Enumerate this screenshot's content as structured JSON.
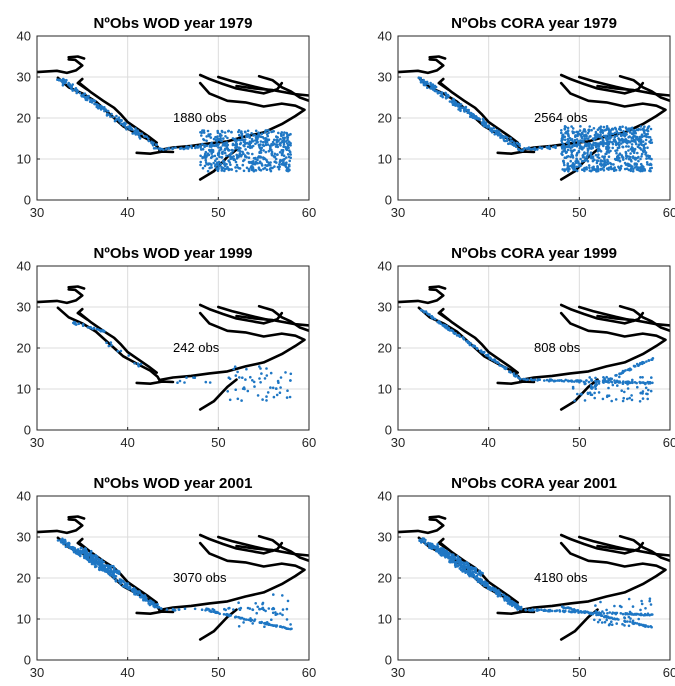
{
  "chart_data": [
    {
      "type": "scatter",
      "title": "NºObs WOD year 1979",
      "annotation": "1880 obs",
      "xlim": [
        30,
        60
      ],
      "ylim": [
        0,
        40
      ],
      "xticks": [
        "30",
        "40",
        "50",
        "60"
      ],
      "yticks": [
        "0",
        "10",
        "20",
        "30",
        "40"
      ],
      "grid": true,
      "clusters": [
        {
          "kind": "line",
          "from": [
            32.5,
            29.5
          ],
          "to": [
            43.5,
            12.5
          ],
          "n": 160,
          "spread": 0.8,
          "seed": 11
        },
        {
          "kind": "line",
          "from": [
            43.5,
            12.3
          ],
          "to": [
            57,
            14.5
          ],
          "n": 60,
          "spread": 0.6,
          "seed": 12
        },
        {
          "kind": "box",
          "x": [
            48,
            58
          ],
          "y": [
            7,
            17
          ],
          "n": 520,
          "seed": 13
        }
      ]
    },
    {
      "type": "scatter",
      "title": "NºObs CORA year 1979",
      "annotation": "2564 obs",
      "xlim": [
        30,
        60
      ],
      "ylim": [
        0,
        40
      ],
      "xticks": [
        "30",
        "40",
        "50",
        "60"
      ],
      "yticks": [
        "0",
        "10",
        "20",
        "30",
        "40"
      ],
      "grid": true,
      "clusters": [
        {
          "kind": "line",
          "from": [
            32.5,
            29.5
          ],
          "to": [
            43.5,
            12.5
          ],
          "n": 220,
          "spread": 0.8,
          "seed": 21
        },
        {
          "kind": "line",
          "from": [
            43.5,
            12.3
          ],
          "to": [
            57,
            14.5
          ],
          "n": 80,
          "spread": 0.6,
          "seed": 22
        },
        {
          "kind": "box",
          "x": [
            48,
            58
          ],
          "y": [
            7,
            18
          ],
          "n": 700,
          "seed": 23
        }
      ]
    },
    {
      "type": "scatter",
      "title": "NºObs WOD year 1999",
      "annotation": "242 obs",
      "xlim": [
        30,
        60
      ],
      "ylim": [
        0,
        40
      ],
      "xticks": [
        "30",
        "40",
        "50",
        "60"
      ],
      "yticks": [
        "0",
        "10",
        "20",
        "30",
        "40"
      ],
      "grid": true,
      "clusters": [
        {
          "kind": "line",
          "from": [
            33.5,
            26.5
          ],
          "to": [
            37.5,
            24
          ],
          "n": 25,
          "spread": 0.4,
          "seed": 31
        },
        {
          "kind": "line",
          "from": [
            37,
            22
          ],
          "to": [
            42,
            15
          ],
          "n": 12,
          "spread": 1.0,
          "seed": 32
        },
        {
          "kind": "box",
          "x": [
            44,
            50
          ],
          "y": [
            11,
            13
          ],
          "n": 8,
          "seed": 33
        },
        {
          "kind": "box",
          "x": [
            51,
            58
          ],
          "y": [
            7,
            15.5
          ],
          "n": 55,
          "seed": 34
        }
      ]
    },
    {
      "type": "scatter",
      "title": "NºObs CORA year 1999",
      "annotation": "808 obs",
      "xlim": [
        30,
        60
      ],
      "ylim": [
        0,
        40
      ],
      "xticks": [
        "30",
        "40",
        "50",
        "60"
      ],
      "yticks": [
        "0",
        "10",
        "20",
        "30",
        "40"
      ],
      "grid": true,
      "clusters": [
        {
          "kind": "line",
          "from": [
            32.5,
            29.5
          ],
          "to": [
            43.5,
            12.5
          ],
          "n": 120,
          "spread": 0.3,
          "seed": 41
        },
        {
          "kind": "line",
          "from": [
            43.5,
            12.3
          ],
          "to": [
            58,
            11.5
          ],
          "n": 90,
          "spread": 0.4,
          "seed": 42
        },
        {
          "kind": "line",
          "from": [
            51,
            10
          ],
          "to": [
            58,
            17.5
          ],
          "n": 60,
          "spread": 0.4,
          "seed": 43
        },
        {
          "kind": "box",
          "x": [
            49,
            58
          ],
          "y": [
            7,
            13
          ],
          "n": 80,
          "seed": 44
        }
      ]
    },
    {
      "type": "scatter",
      "title": "NºObs WOD year 2001",
      "annotation": "3070 obs",
      "xlim": [
        30,
        60
      ],
      "ylim": [
        0,
        40
      ],
      "xticks": [
        "30",
        "40",
        "50",
        "60"
      ],
      "yticks": [
        "0",
        "10",
        "20",
        "30",
        "40"
      ],
      "grid": true,
      "clusters": [
        {
          "kind": "line",
          "from": [
            32.5,
            29.5
          ],
          "to": [
            43.5,
            12.5
          ],
          "n": 260,
          "spread": 0.7,
          "seed": 51
        },
        {
          "kind": "line",
          "from": [
            35,
            27
          ],
          "to": [
            39,
            21
          ],
          "n": 120,
          "spread": 0.9,
          "seed": 52
        },
        {
          "kind": "line",
          "from": [
            49,
            12
          ],
          "to": [
            58,
            7.5
          ],
          "n": 80,
          "spread": 0.25,
          "seed": 53
        },
        {
          "kind": "line",
          "from": [
            44,
            12.3
          ],
          "to": [
            58,
            12.5
          ],
          "n": 40,
          "spread": 0.5,
          "seed": 54
        },
        {
          "kind": "box",
          "x": [
            52,
            58
          ],
          "y": [
            8,
            16
          ],
          "n": 30,
          "seed": 55
        }
      ]
    },
    {
      "type": "scatter",
      "title": "NºObs CORA year 2001",
      "annotation": "4180 obs",
      "xlim": [
        30,
        60
      ],
      "ylim": [
        0,
        40
      ],
      "xticks": [
        "30",
        "40",
        "50",
        "60"
      ],
      "yticks": [
        "0",
        "10",
        "20",
        "30",
        "40"
      ],
      "grid": true,
      "clusters": [
        {
          "kind": "line",
          "from": [
            32.5,
            29.5
          ],
          "to": [
            43.5,
            12.5
          ],
          "n": 300,
          "spread": 0.7,
          "seed": 61
        },
        {
          "kind": "line",
          "from": [
            34,
            28
          ],
          "to": [
            39,
            21
          ],
          "n": 140,
          "spread": 0.9,
          "seed": 62
        },
        {
          "kind": "line",
          "from": [
            44,
            12.3
          ],
          "to": [
            58,
            11
          ],
          "n": 100,
          "spread": 0.35,
          "seed": 63
        },
        {
          "kind": "line",
          "from": [
            48,
            13
          ],
          "to": [
            58,
            8
          ],
          "n": 80,
          "spread": 0.3,
          "seed": 64
        },
        {
          "kind": "box",
          "x": [
            51,
            58
          ],
          "y": [
            8,
            15
          ],
          "n": 40,
          "seed": 65
        }
      ]
    }
  ],
  "colors": {
    "points": "#1f77c4",
    "coastline": "#000000",
    "grid": "#dcdcdc"
  }
}
